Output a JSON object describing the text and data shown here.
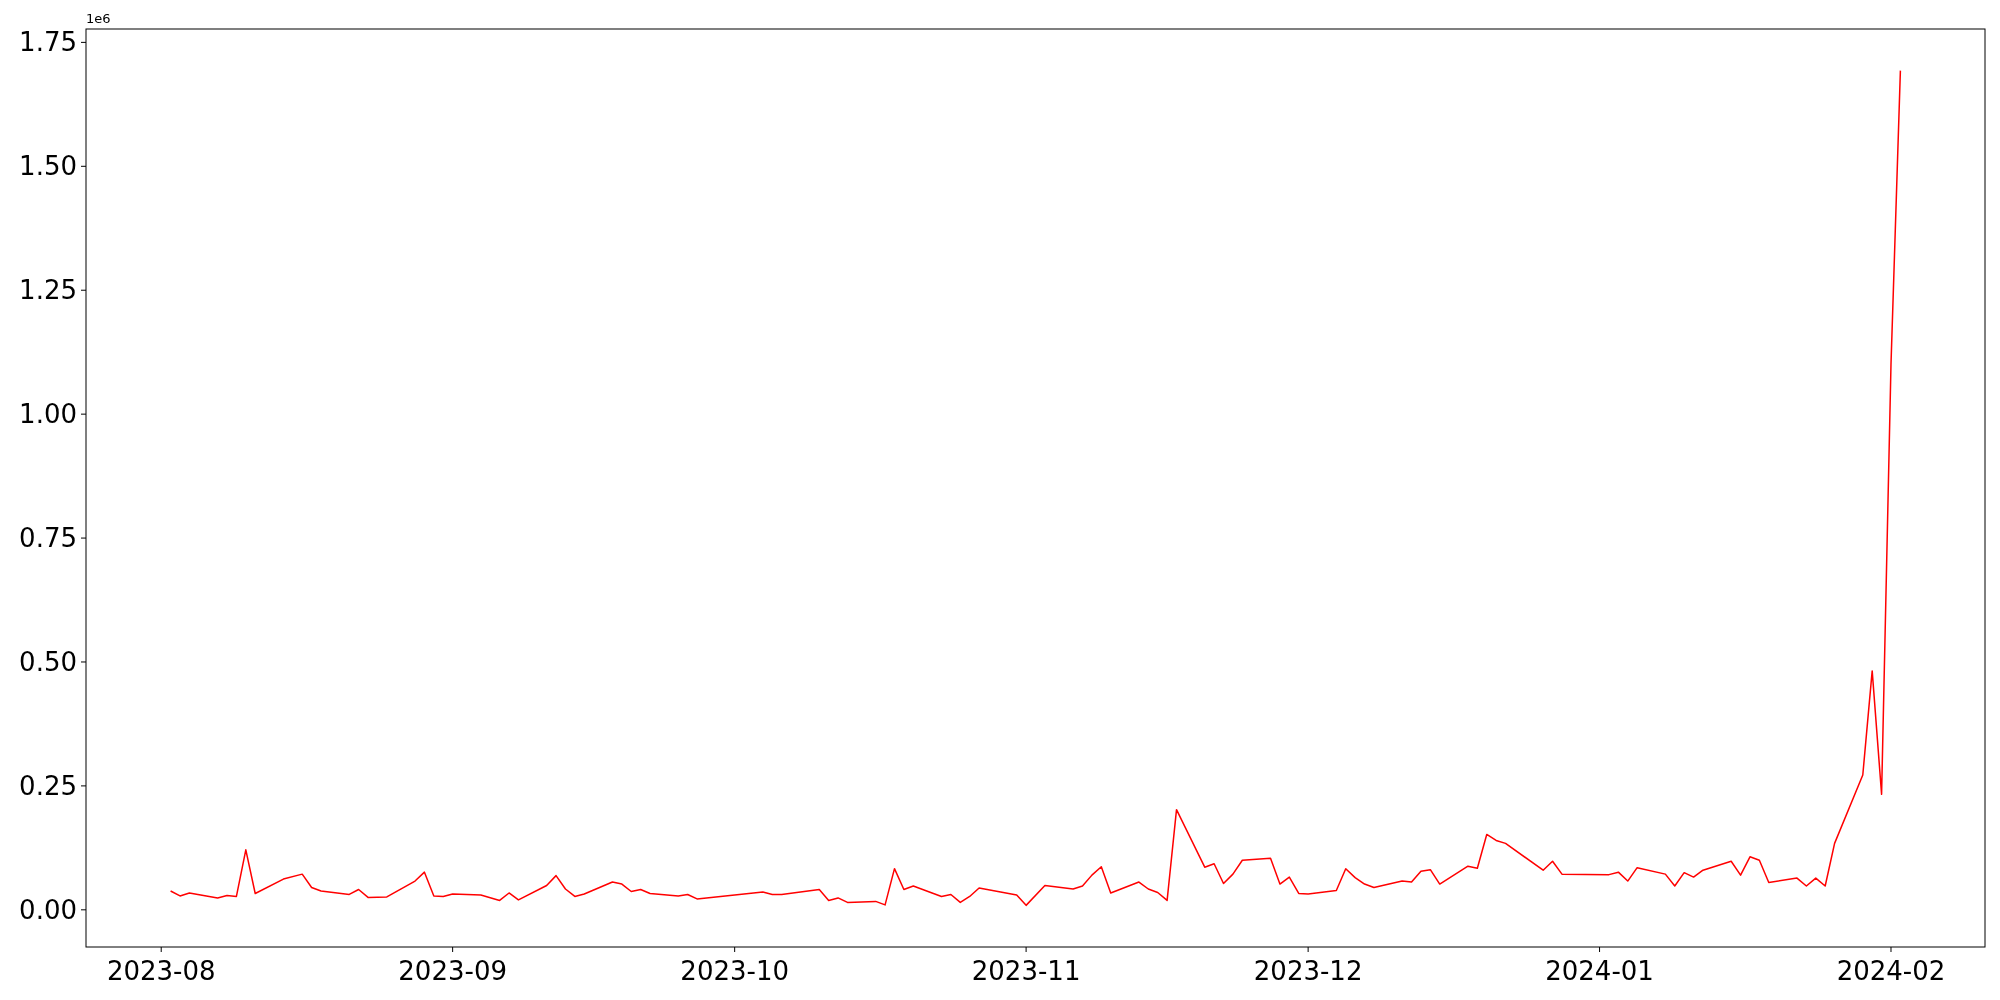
{
  "chart_data": {
    "type": "line",
    "annotations": [
      "1e6"
    ],
    "x": [
      "2023-08-02",
      "2023-08-03",
      "2023-08-04",
      "2023-08-07",
      "2023-08-08",
      "2023-08-09",
      "2023-08-10",
      "2023-08-11",
      "2023-08-14",
      "2023-08-16",
      "2023-08-17",
      "2023-08-18",
      "2023-08-21",
      "2023-08-22",
      "2023-08-23",
      "2023-08-25",
      "2023-08-28",
      "2023-08-29",
      "2023-08-30",
      "2023-08-31",
      "2023-09-01",
      "2023-09-04",
      "2023-09-06",
      "2023-09-07",
      "2023-09-08",
      "2023-09-11",
      "2023-09-12",
      "2023-09-13",
      "2023-09-14",
      "2023-09-15",
      "2023-09-18",
      "2023-09-19",
      "2023-09-20",
      "2023-09-21",
      "2023-09-22",
      "2023-09-25",
      "2023-09-26",
      "2023-09-27",
      "2023-10-04",
      "2023-10-05",
      "2023-10-06",
      "2023-10-10",
      "2023-10-11",
      "2023-10-12",
      "2023-10-13",
      "2023-10-16",
      "2023-10-17",
      "2023-10-18",
      "2023-10-19",
      "2023-10-20",
      "2023-10-23",
      "2023-10-24",
      "2023-10-25",
      "2023-10-26",
      "2023-10-27",
      "2023-10-31",
      "2023-11-01",
      "2023-11-03",
      "2023-11-06",
      "2023-11-07",
      "2023-11-08",
      "2023-11-09",
      "2023-11-10",
      "2023-11-13",
      "2023-11-14",
      "2023-11-15",
      "2023-11-16",
      "2023-11-17",
      "2023-11-20",
      "2023-11-21",
      "2023-11-22",
      "2023-11-23",
      "2023-11-24",
      "2023-11-27",
      "2023-11-28",
      "2023-11-29",
      "2023-11-30",
      "2023-12-01",
      "2023-12-04",
      "2023-12-05",
      "2023-12-06",
      "2023-12-07",
      "2023-12-08",
      "2023-12-11",
      "2023-12-12",
      "2023-12-13",
      "2023-12-14",
      "2023-12-15",
      "2023-12-18",
      "2023-12-19",
      "2023-12-20",
      "2023-12-21",
      "2023-12-22",
      "2023-12-26",
      "2023-12-27",
      "2023-12-28",
      "2024-01-02",
      "2024-01-03",
      "2024-01-04",
      "2024-01-05",
      "2024-01-08",
      "2024-01-09",
      "2024-01-10",
      "2024-01-11",
      "2024-01-12",
      "2024-01-15",
      "2024-01-16",
      "2024-01-17",
      "2024-01-18",
      "2024-01-19",
      "2024-01-22",
      "2024-01-23",
      "2024-01-24",
      "2024-01-25",
      "2024-01-26",
      "2024-01-29",
      "2024-01-30",
      "2024-01-31",
      "2024-02-01",
      "2024-02-02"
    ],
    "series": [
      {
        "color": "#ff0000",
        "values": [
          0.038,
          0.028,
          0.034,
          0.024,
          0.029,
          0.027,
          0.121,
          0.033,
          0.062,
          0.072,
          0.045,
          0.038,
          0.031,
          0.041,
          0.025,
          0.026,
          0.058,
          0.076,
          0.028,
          0.027,
          0.032,
          0.03,
          0.019,
          0.034,
          0.02,
          0.049,
          0.069,
          0.042,
          0.027,
          0.032,
          0.056,
          0.052,
          0.037,
          0.041,
          0.033,
          0.028,
          0.031,
          0.022,
          0.036,
          0.031,
          0.031,
          0.041,
          0.019,
          0.024,
          0.015,
          0.017,
          0.01,
          0.083,
          0.041,
          0.048,
          0.027,
          0.031,
          0.015,
          0.027,
          0.044,
          0.03,
          0.009,
          0.049,
          0.042,
          0.048,
          0.07,
          0.087,
          0.034,
          0.056,
          0.042,
          0.035,
          0.019,
          0.202,
          0.086,
          0.093,
          0.053,
          0.072,
          0.1,
          0.104,
          0.052,
          0.066,
          0.033,
          0.032,
          0.039,
          0.083,
          0.065,
          0.052,
          0.045,
          0.058,
          0.056,
          0.078,
          0.081,
          0.052,
          0.088,
          0.084,
          0.152,
          0.14,
          0.134,
          0.08,
          0.098,
          0.072,
          0.071,
          0.076,
          0.058,
          0.085,
          0.072,
          0.048,
          0.075,
          0.066,
          0.08,
          0.098,
          0.07,
          0.107,
          0.1,
          0.055,
          0.064,
          0.048,
          0.064,
          0.048,
          0.134,
          0.272,
          0.482,
          0.233,
          1.1,
          1.693
        ]
      }
    ],
    "xlim": [
      "2023-07-24",
      "2024-02-11"
    ],
    "ylim": [
      -0.075,
      1.777
    ],
    "xticks": [
      "2023-08",
      "2023-09",
      "2023-10",
      "2023-11",
      "2023-12",
      "2024-01",
      "2024-02"
    ],
    "yticks": [
      {
        "value": 0,
        "label": "0.00"
      },
      0.25,
      {
        "value": 0.5,
        "label": "0.50"
      },
      0.75,
      {
        "value": 1,
        "label": "1.00"
      },
      1.25,
      {
        "value": 1.5,
        "label": "1.50"
      },
      1.75
    ],
    "grid": false,
    "marker": "none",
    "line_style": "solid"
  }
}
